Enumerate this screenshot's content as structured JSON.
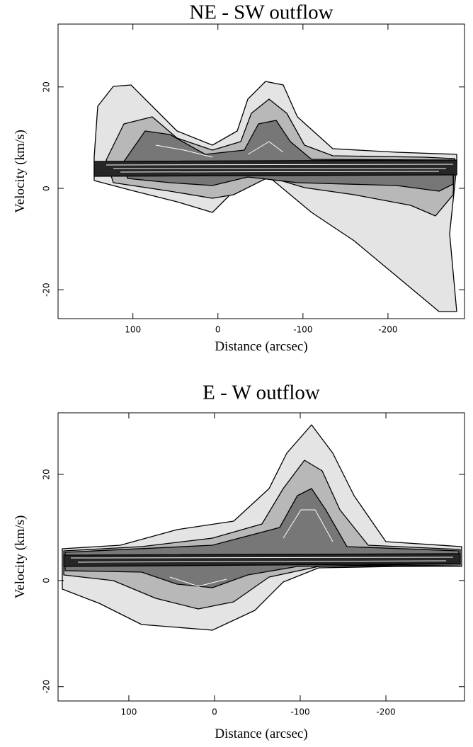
{
  "chart_data": [
    {
      "type": "contour",
      "title": "NE - SW outflow",
      "xlabel": "Distance (arcsec)",
      "ylabel": "Velocity (km/s)",
      "xlim": [
        188,
        -290
      ],
      "ylim": [
        32.4,
        -25.7
      ],
      "xticks": [
        100,
        0,
        -100,
        -200
      ],
      "yticks": [
        -20,
        0,
        20
      ]
    },
    {
      "type": "contour",
      "title": "E - W outflow",
      "xlabel": "Distance (arcsec)",
      "ylabel": "Velocity (km/s)",
      "xlim": [
        182.6,
        -291.7
      ],
      "ylim": [
        31.6,
        -22.7
      ],
      "xticks": [
        100,
        0,
        -100,
        -200
      ],
      "yticks": [
        -20,
        0,
        20
      ]
    }
  ]
}
